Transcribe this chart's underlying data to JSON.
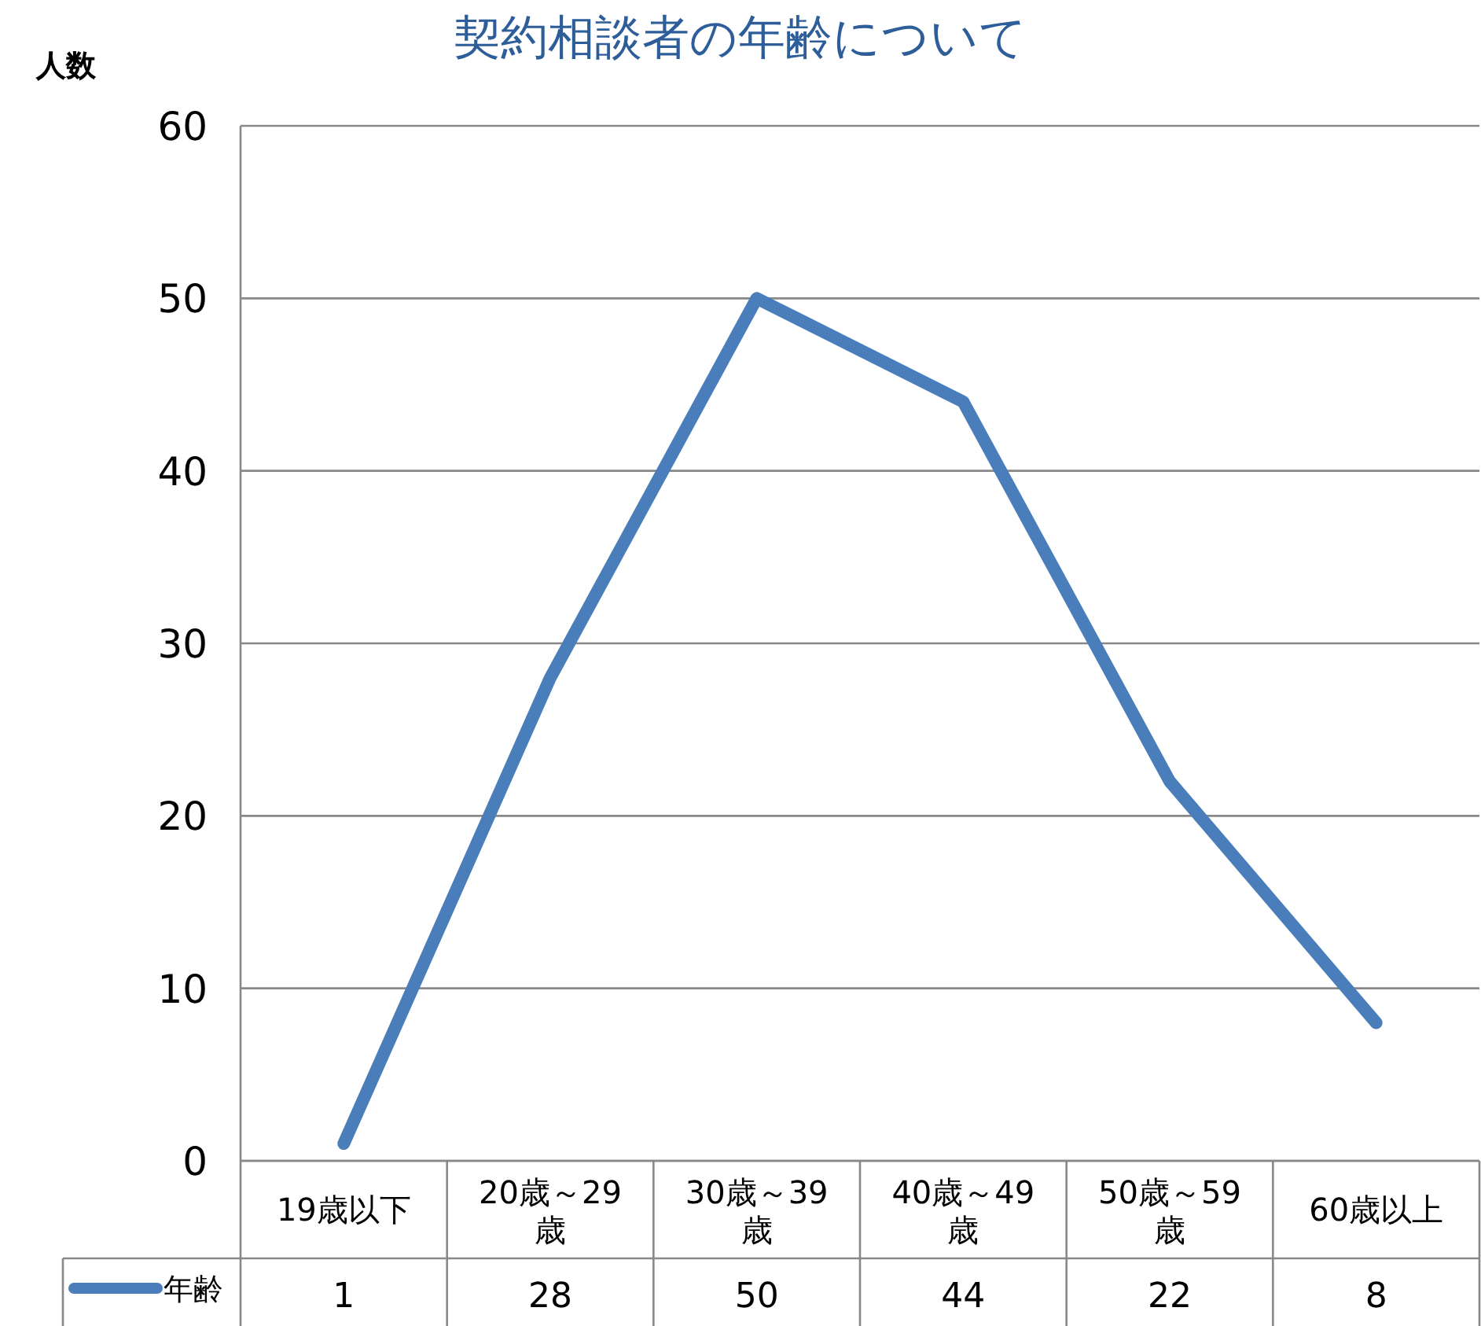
{
  "chart_data": {
    "type": "line",
    "title": "契約相談者の年齢について",
    "ylabel": "人数",
    "categories": [
      "19歳以下",
      "20歳～29歳",
      "30歳～39歳",
      "40歳～49歳",
      "50歳～59歳",
      "60歳以上"
    ],
    "series": [
      {
        "name": "年齢",
        "color": "#4a7ebb",
        "values": [
          1,
          28,
          50,
          44,
          22,
          8
        ]
      }
    ],
    "ylim": [
      0,
      60
    ],
    "yticks": [
      0,
      10,
      20,
      30,
      40,
      50,
      60
    ],
    "grid": "y",
    "legend": "bottom",
    "data_labels": true,
    "marker": "none",
    "line_style": "solid"
  }
}
